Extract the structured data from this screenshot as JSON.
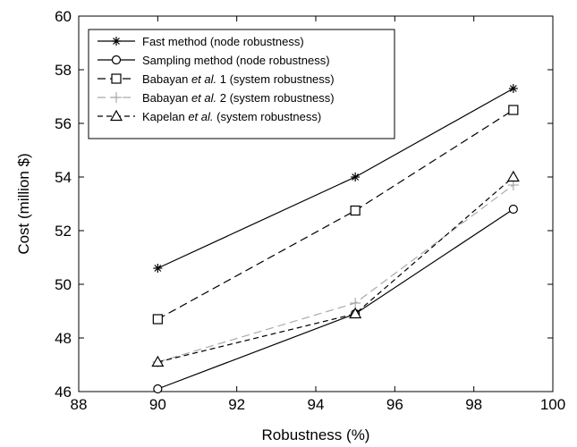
{
  "chart_data": {
    "type": "line",
    "xlabel": "Robustness (%)",
    "ylabel": "Cost (million $)",
    "xlim": [
      88,
      100
    ],
    "ylim": [
      46,
      60
    ],
    "xticks": [
      88,
      90,
      92,
      94,
      96,
      98,
      100
    ],
    "yticks": [
      46,
      48,
      50,
      52,
      54,
      56,
      58,
      60
    ],
    "grid": false,
    "legend_position": "top-left",
    "series": [
      {
        "name_parts": [
          "Fast method (node robustness)"
        ],
        "x": [
          90,
          95,
          99
        ],
        "y": [
          50.6,
          54.0,
          57.3
        ],
        "color": "#000000",
        "dash": "solid",
        "marker": "star"
      },
      {
        "name_parts": [
          "Sampling method (node robustness)"
        ],
        "x": [
          90,
          95,
          99
        ],
        "y": [
          46.1,
          48.9,
          52.8
        ],
        "color": "#000000",
        "dash": "solid",
        "marker": "circle"
      },
      {
        "name_parts": [
          "Babayan ",
          "et al.",
          " 1 (system robustness)"
        ],
        "x": [
          90,
          95,
          99
        ],
        "y": [
          48.7,
          52.75,
          56.5
        ],
        "color": "#000000",
        "dash": "longdash",
        "marker": "square"
      },
      {
        "name_parts": [
          "Babayan ",
          "et al.",
          " 2 (system robustness)"
        ],
        "x": [
          90,
          95,
          99
        ],
        "y": [
          47.1,
          49.3,
          53.7
        ],
        "color": "#aaaaaa",
        "dash": "longdash",
        "marker": "plus"
      },
      {
        "name_parts": [
          "Kapelan ",
          "et al.",
          " (system robustness)"
        ],
        "x": [
          90,
          95,
          99
        ],
        "y": [
          47.1,
          48.9,
          54.0
        ],
        "color": "#000000",
        "dash": "shortdash",
        "marker": "triangle"
      }
    ]
  }
}
